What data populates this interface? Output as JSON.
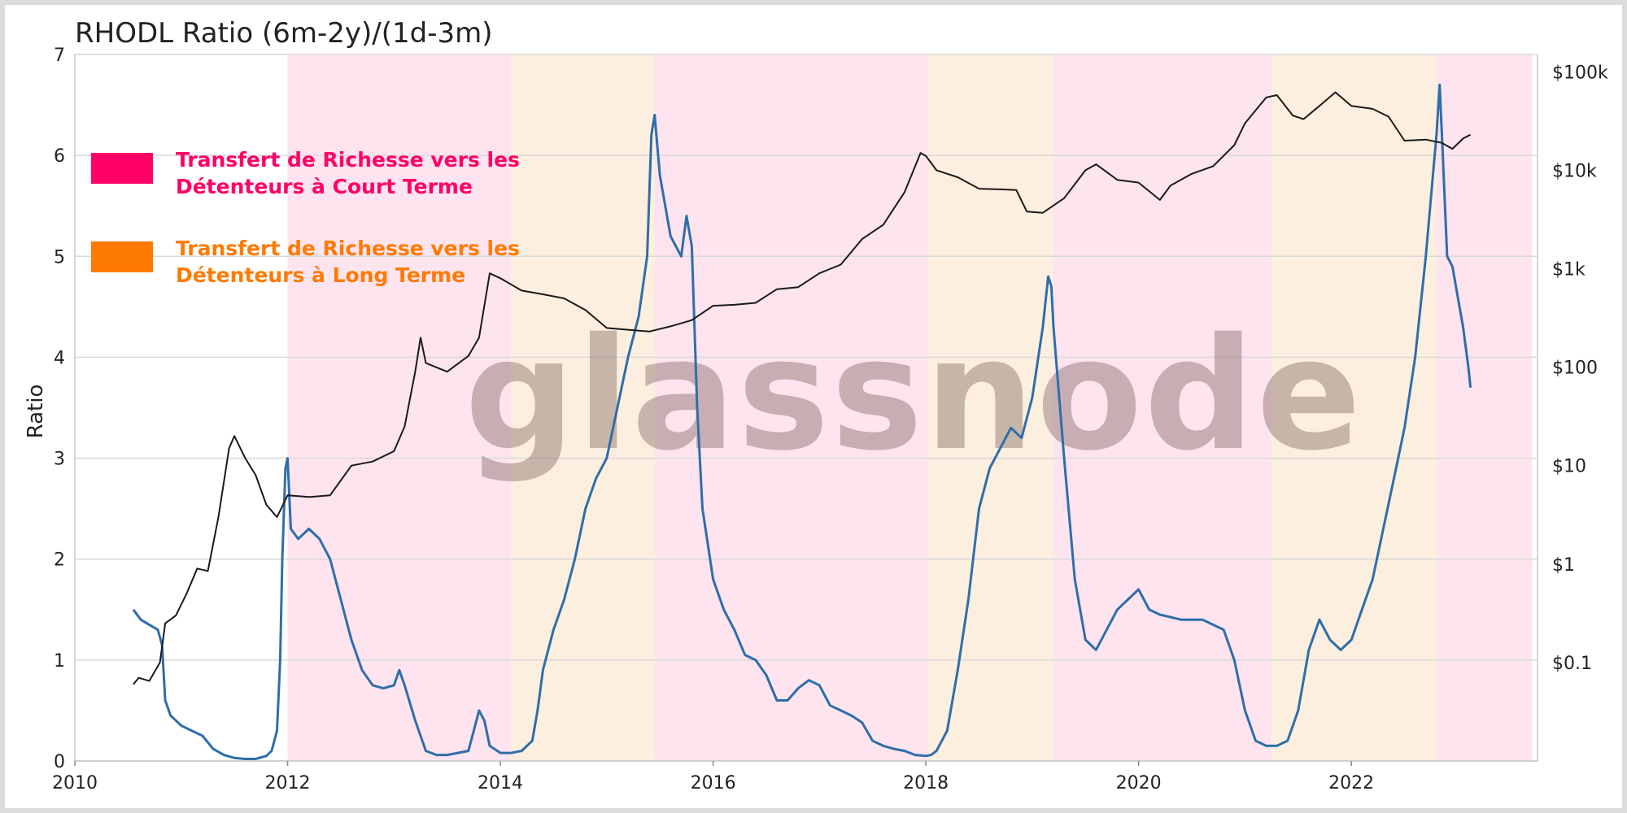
{
  "chart_data": {
    "type": "line",
    "title": "RHODL Ratio (6m-2y)/(1d-3m)",
    "ylabel": "Ratio",
    "ylim": [
      0,
      7
    ],
    "y_ticks": [
      0,
      1,
      2,
      3,
      4,
      5,
      6,
      7
    ],
    "xlim": [
      2010,
      2023.75
    ],
    "x_ticks": [
      2010,
      2012,
      2014,
      2016,
      2018,
      2020,
      2022
    ],
    "y2_scale": "log",
    "y2_ticks": [
      {
        "value": 0.1,
        "label": "$0.1"
      },
      {
        "value": 1,
        "label": "$1"
      },
      {
        "value": 10,
        "label": "$10"
      },
      {
        "value": 100,
        "label": "$100"
      },
      {
        "value": 1000,
        "label": "$1k"
      },
      {
        "value": 10000,
        "label": "$10k"
      },
      {
        "value": 100000,
        "label": "$100k"
      }
    ],
    "y2lim": [
      0.01,
      150000
    ],
    "grid": true,
    "legend": [
      {
        "label_line1": "Transfert de Richesse vers les",
        "label_line2": "Détenteurs à Court Terme",
        "color": "#ff0066"
      },
      {
        "label_line1": "Transfert de Richesse vers les",
        "label_line2": "Détenteurs à Long Terme",
        "color": "#ff7a00"
      }
    ],
    "regions": [
      {
        "start": 2012.0,
        "end": 2014.1,
        "kind": "short-term",
        "color": "#fde4ef"
      },
      {
        "start": 2014.1,
        "end": 2015.45,
        "kind": "long-term",
        "color": "#fdefdf"
      },
      {
        "start": 2015.45,
        "end": 2018.02,
        "kind": "short-term",
        "color": "#fde4ef"
      },
      {
        "start": 2018.02,
        "end": 2019.2,
        "kind": "long-term",
        "color": "#fdefdf"
      },
      {
        "start": 2019.2,
        "end": 2021.25,
        "kind": "short-term",
        "color": "#fde4ef"
      },
      {
        "start": 2021.25,
        "end": 2022.8,
        "kind": "long-term",
        "color": "#fdefdf"
      },
      {
        "start": 2022.8,
        "end": 2023.7,
        "kind": "short-term",
        "color": "#fde4ef"
      }
    ],
    "series": [
      {
        "axis": "left",
        "color": "#2f6ea8",
        "points": [
          [
            2010.55,
            1.5
          ],
          [
            2010.62,
            1.4
          ],
          [
            2010.7,
            1.35
          ],
          [
            2010.78,
            1.3
          ],
          [
            2010.82,
            1.15
          ],
          [
            2010.85,
            0.6
          ],
          [
            2010.9,
            0.45
          ],
          [
            2011.0,
            0.35
          ],
          [
            2011.1,
            0.3
          ],
          [
            2011.2,
            0.25
          ],
          [
            2011.3,
            0.12
          ],
          [
            2011.4,
            0.06
          ],
          [
            2011.5,
            0.03
          ],
          [
            2011.6,
            0.02
          ],
          [
            2011.7,
            0.02
          ],
          [
            2011.8,
            0.05
          ],
          [
            2011.85,
            0.1
          ],
          [
            2011.9,
            0.3
          ],
          [
            2011.93,
            1.0
          ],
          [
            2011.95,
            2.0
          ],
          [
            2011.98,
            2.9
          ],
          [
            2012.0,
            3.0
          ],
          [
            2012.03,
            2.3
          ],
          [
            2012.1,
            2.2
          ],
          [
            2012.2,
            2.3
          ],
          [
            2012.3,
            2.2
          ],
          [
            2012.4,
            2.0
          ],
          [
            2012.5,
            1.6
          ],
          [
            2012.6,
            1.2
          ],
          [
            2012.7,
            0.9
          ],
          [
            2012.8,
            0.75
          ],
          [
            2012.9,
            0.72
          ],
          [
            2013.0,
            0.75
          ],
          [
            2013.05,
            0.9
          ],
          [
            2013.1,
            0.75
          ],
          [
            2013.2,
            0.4
          ],
          [
            2013.3,
            0.1
          ],
          [
            2013.4,
            0.06
          ],
          [
            2013.5,
            0.06
          ],
          [
            2013.6,
            0.08
          ],
          [
            2013.7,
            0.1
          ],
          [
            2013.75,
            0.3
          ],
          [
            2013.8,
            0.5
          ],
          [
            2013.85,
            0.4
          ],
          [
            2013.9,
            0.15
          ],
          [
            2014.0,
            0.08
          ],
          [
            2014.1,
            0.08
          ],
          [
            2014.2,
            0.1
          ],
          [
            2014.3,
            0.2
          ],
          [
            2014.35,
            0.5
          ],
          [
            2014.4,
            0.9
          ],
          [
            2014.5,
            1.3
          ],
          [
            2014.6,
            1.6
          ],
          [
            2014.7,
            2.0
          ],
          [
            2014.8,
            2.5
          ],
          [
            2014.9,
            2.8
          ],
          [
            2015.0,
            3.0
          ],
          [
            2015.1,
            3.5
          ],
          [
            2015.2,
            4.0
          ],
          [
            2015.3,
            4.4
          ],
          [
            2015.38,
            5.0
          ],
          [
            2015.42,
            6.2
          ],
          [
            2015.45,
            6.4
          ],
          [
            2015.5,
            5.8
          ],
          [
            2015.6,
            5.2
          ],
          [
            2015.7,
            5.0
          ],
          [
            2015.75,
            5.4
          ],
          [
            2015.8,
            5.1
          ],
          [
            2015.85,
            3.5
          ],
          [
            2015.9,
            2.5
          ],
          [
            2016.0,
            1.8
          ],
          [
            2016.1,
            1.5
          ],
          [
            2016.2,
            1.3
          ],
          [
            2016.3,
            1.05
          ],
          [
            2016.4,
            1.0
          ],
          [
            2016.5,
            0.85
          ],
          [
            2016.6,
            0.6
          ],
          [
            2016.7,
            0.6
          ],
          [
            2016.8,
            0.72
          ],
          [
            2016.9,
            0.8
          ],
          [
            2017.0,
            0.75
          ],
          [
            2017.1,
            0.55
          ],
          [
            2017.2,
            0.5
          ],
          [
            2017.3,
            0.45
          ],
          [
            2017.4,
            0.38
          ],
          [
            2017.5,
            0.2
          ],
          [
            2017.6,
            0.15
          ],
          [
            2017.7,
            0.12
          ],
          [
            2017.8,
            0.1
          ],
          [
            2017.9,
            0.06
          ],
          [
            2018.0,
            0.05
          ],
          [
            2018.05,
            0.06
          ],
          [
            2018.1,
            0.1
          ],
          [
            2018.2,
            0.3
          ],
          [
            2018.3,
            0.9
          ],
          [
            2018.4,
            1.6
          ],
          [
            2018.5,
            2.5
          ],
          [
            2018.6,
            2.9
          ],
          [
            2018.7,
            3.1
          ],
          [
            2018.8,
            3.3
          ],
          [
            2018.9,
            3.2
          ],
          [
            2019.0,
            3.6
          ],
          [
            2019.1,
            4.3
          ],
          [
            2019.15,
            4.8
          ],
          [
            2019.18,
            4.7
          ],
          [
            2019.2,
            4.3
          ],
          [
            2019.3,
            3.0
          ],
          [
            2019.4,
            1.8
          ],
          [
            2019.5,
            1.2
          ],
          [
            2019.6,
            1.1
          ],
          [
            2019.7,
            1.3
          ],
          [
            2019.8,
            1.5
          ],
          [
            2019.9,
            1.6
          ],
          [
            2020.0,
            1.7
          ],
          [
            2020.1,
            1.5
          ],
          [
            2020.2,
            1.45
          ],
          [
            2020.4,
            1.4
          ],
          [
            2020.6,
            1.4
          ],
          [
            2020.8,
            1.3
          ],
          [
            2020.9,
            1.0
          ],
          [
            2021.0,
            0.5
          ],
          [
            2021.1,
            0.2
          ],
          [
            2021.2,
            0.15
          ],
          [
            2021.3,
            0.15
          ],
          [
            2021.4,
            0.2
          ],
          [
            2021.5,
            0.5
          ],
          [
            2021.6,
            1.1
          ],
          [
            2021.7,
            1.4
          ],
          [
            2021.8,
            1.2
          ],
          [
            2021.9,
            1.1
          ],
          [
            2022.0,
            1.2
          ],
          [
            2022.1,
            1.5
          ],
          [
            2022.2,
            1.8
          ],
          [
            2022.3,
            2.3
          ],
          [
            2022.4,
            2.8
          ],
          [
            2022.5,
            3.3
          ],
          [
            2022.6,
            4.0
          ],
          [
            2022.7,
            5.0
          ],
          [
            2022.75,
            5.6
          ],
          [
            2022.8,
            6.2
          ],
          [
            2022.83,
            6.7
          ],
          [
            2022.86,
            6.0
          ],
          [
            2022.9,
            5.0
          ],
          [
            2022.95,
            4.9
          ],
          [
            2023.0,
            4.6
          ],
          [
            2023.05,
            4.3
          ],
          [
            2023.1,
            3.9
          ],
          [
            2023.12,
            3.7
          ]
        ]
      },
      {
        "axis": "right",
        "color": "#1a1a1a",
        "points": [
          [
            2010.55,
            0.06
          ],
          [
            2010.6,
            0.07
          ],
          [
            2010.7,
            0.065
          ],
          [
            2010.8,
            0.1
          ],
          [
            2010.85,
            0.25
          ],
          [
            2010.95,
            0.3
          ],
          [
            2011.05,
            0.5
          ],
          [
            2011.15,
            0.9
          ],
          [
            2011.25,
            0.85
          ],
          [
            2011.35,
            3.0
          ],
          [
            2011.45,
            15
          ],
          [
            2011.5,
            20
          ],
          [
            2011.6,
            12
          ],
          [
            2011.7,
            8
          ],
          [
            2011.8,
            4
          ],
          [
            2011.9,
            3
          ],
          [
            2012.0,
            5
          ],
          [
            2012.2,
            4.8
          ],
          [
            2012.4,
            5.0
          ],
          [
            2012.6,
            10
          ],
          [
            2012.8,
            11
          ],
          [
            2013.0,
            14
          ],
          [
            2013.1,
            25
          ],
          [
            2013.2,
            90
          ],
          [
            2013.25,
            200
          ],
          [
            2013.3,
            110
          ],
          [
            2013.5,
            90
          ],
          [
            2013.7,
            130
          ],
          [
            2013.8,
            200
          ],
          [
            2013.9,
            900
          ],
          [
            2014.0,
            800
          ],
          [
            2014.2,
            600
          ],
          [
            2014.4,
            550
          ],
          [
            2014.6,
            500
          ],
          [
            2014.8,
            380
          ],
          [
            2015.0,
            250
          ],
          [
            2015.2,
            240
          ],
          [
            2015.4,
            230
          ],
          [
            2015.6,
            260
          ],
          [
            2015.8,
            300
          ],
          [
            2016.0,
            420
          ],
          [
            2016.2,
            430
          ],
          [
            2016.4,
            450
          ],
          [
            2016.6,
            620
          ],
          [
            2016.8,
            650
          ],
          [
            2017.0,
            900
          ],
          [
            2017.2,
            1100
          ],
          [
            2017.4,
            2000
          ],
          [
            2017.6,
            2800
          ],
          [
            2017.8,
            6000
          ],
          [
            2017.95,
            15000
          ],
          [
            2018.0,
            14000
          ],
          [
            2018.1,
            10000
          ],
          [
            2018.3,
            8500
          ],
          [
            2018.5,
            6500
          ],
          [
            2018.7,
            6400
          ],
          [
            2018.85,
            6300
          ],
          [
            2018.95,
            3800
          ],
          [
            2019.1,
            3700
          ],
          [
            2019.3,
            5200
          ],
          [
            2019.5,
            10000
          ],
          [
            2019.6,
            11500
          ],
          [
            2019.8,
            8000
          ],
          [
            2020.0,
            7500
          ],
          [
            2020.2,
            5000
          ],
          [
            2020.3,
            7000
          ],
          [
            2020.5,
            9200
          ],
          [
            2020.7,
            11000
          ],
          [
            2020.9,
            18000
          ],
          [
            2021.0,
            30000
          ],
          [
            2021.2,
            55000
          ],
          [
            2021.3,
            58000
          ],
          [
            2021.45,
            36000
          ],
          [
            2021.55,
            33000
          ],
          [
            2021.7,
            45000
          ],
          [
            2021.85,
            62000
          ],
          [
            2022.0,
            45000
          ],
          [
            2022.2,
            42000
          ],
          [
            2022.35,
            35000
          ],
          [
            2022.5,
            20000
          ],
          [
            2022.7,
            20500
          ],
          [
            2022.85,
            19000
          ],
          [
            2022.95,
            16500
          ],
          [
            2023.05,
            21000
          ],
          [
            2023.12,
            23000
          ]
        ]
      }
    ]
  },
  "watermark": "glassnode"
}
